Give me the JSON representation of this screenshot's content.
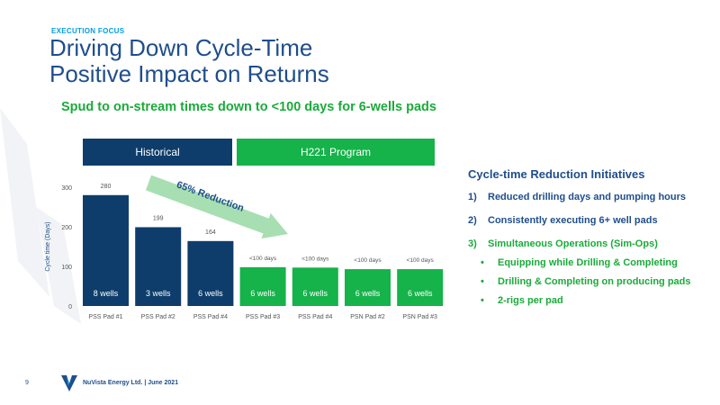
{
  "header": {
    "section_label": "EXECUTION FOCUS",
    "title_line1": "Driving Down Cycle-Time",
    "title_line2": "Positive Impact on Returns"
  },
  "subtitle": "Spud to on-stream times down to <100 days for 6-wells pads",
  "bands": {
    "historical": "Historical",
    "program": "H221 Program"
  },
  "chart_data": {
    "type": "bar",
    "categories": [
      "PSS Pad #1",
      "PSS Pad #2",
      "PSS Pad #4",
      "PSS Pad #3",
      "PSS Pad #4",
      "PSN Pad #2",
      "PSN Pad #3"
    ],
    "values": [
      280,
      199,
      164,
      98,
      97,
      93,
      93
    ],
    "value_labels": [
      "280",
      "199",
      "164",
      "<100 days",
      "<100 days",
      "<100 days",
      "<100 days"
    ],
    "bar_labels": [
      "8 wells",
      "3 wells",
      "6 wells",
      "6 wells",
      "6 wells",
      "6 wells",
      "6 wells"
    ],
    "groups": [
      "Historical",
      "Historical",
      "Historical",
      "H221 Program",
      "H221 Program",
      "H221 Program",
      "H221 Program"
    ],
    "ylabel": "Cycle time (Days)",
    "xlabel": "",
    "ylim": [
      0,
      300
    ],
    "yticks": [
      0,
      100,
      200,
      300
    ],
    "grid": false,
    "annotation": "65% Reduction",
    "colors": {
      "Historical": "#0e3d6b",
      "H221 Program": "#16b24a",
      "arrow": "#a8dfb2",
      "annotation_text": "#1f4e8c"
    }
  },
  "initiatives": {
    "title": "Cycle-time Reduction Initiatives",
    "items": [
      {
        "num": "1)",
        "text": "Reduced drilling days and pumping hours"
      },
      {
        "num": "2)",
        "text": "Consistently executing 6+ well pads"
      },
      {
        "num": "3)",
        "text": "Simultaneous Operations (Sim-Ops)"
      }
    ],
    "sub_items": [
      {
        "bullet": "•",
        "text": "Equipping while Drilling & Completing"
      },
      {
        "bullet": "•",
        "text": "Drilling & Completing on producing pads"
      },
      {
        "bullet": "•",
        "text": "2-rigs per pad"
      }
    ]
  },
  "footer": {
    "page_number": "9",
    "text": "NuVista Energy Ltd. | June 2021",
    "logo_icon": "nuvista-v-logo"
  }
}
